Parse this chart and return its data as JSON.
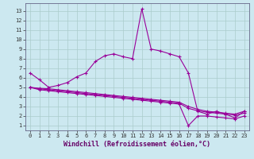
{
  "xlabel": "Windchill (Refroidissement éolien,°C)",
  "line1_x": [
    0,
    1,
    2,
    3,
    4,
    5,
    6,
    7,
    8,
    9,
    10,
    11,
    12,
    13,
    14,
    15,
    16,
    17,
    18,
    19,
    20,
    21,
    22,
    23
  ],
  "line1_y": [
    6.5,
    5.8,
    5.0,
    5.2,
    5.5,
    6.1,
    6.5,
    7.7,
    8.3,
    8.5,
    8.2,
    8.0,
    13.2,
    9.0,
    8.8,
    8.5,
    8.2,
    6.5,
    2.5,
    2.2,
    2.5,
    2.2,
    1.8,
    2.5
  ],
  "line2_x": [
    0,
    1,
    2,
    3,
    4,
    5,
    6,
    7,
    8,
    9,
    10,
    11,
    12,
    13,
    14,
    15,
    16,
    17,
    18,
    19,
    20,
    21,
    22,
    23
  ],
  "line2_y": [
    5.0,
    4.9,
    4.85,
    4.75,
    4.65,
    4.55,
    4.45,
    4.35,
    4.25,
    4.15,
    4.05,
    3.95,
    3.85,
    3.75,
    3.65,
    3.55,
    3.45,
    3.0,
    2.7,
    2.5,
    2.4,
    2.3,
    2.2,
    2.5
  ],
  "line3_x": [
    0,
    1,
    2,
    3,
    4,
    5,
    6,
    7,
    8,
    9,
    10,
    11,
    12,
    13,
    14,
    15,
    16,
    17,
    18,
    19,
    20,
    21,
    22,
    23
  ],
  "line3_y": [
    5.0,
    4.85,
    4.75,
    4.65,
    4.55,
    4.45,
    4.35,
    4.25,
    4.15,
    4.05,
    3.95,
    3.85,
    3.75,
    3.65,
    3.55,
    3.45,
    3.35,
    2.8,
    2.55,
    2.4,
    2.3,
    2.2,
    2.1,
    2.3
  ],
  "line4_x": [
    0,
    1,
    2,
    3,
    4,
    5,
    6,
    7,
    8,
    9,
    10,
    11,
    12,
    13,
    14,
    15,
    16,
    17,
    18,
    19,
    20,
    21,
    22,
    23
  ],
  "line4_y": [
    5.0,
    4.75,
    4.65,
    4.55,
    4.45,
    4.35,
    4.25,
    4.15,
    4.05,
    3.95,
    3.85,
    3.75,
    3.65,
    3.55,
    3.45,
    3.35,
    3.25,
    1.0,
    2.0,
    2.0,
    1.9,
    1.8,
    1.7,
    2.0
  ],
  "line_color": "#990099",
  "bg_color": "#cce8f0",
  "grid_color": "#aacccc",
  "ylim": [
    0.5,
    13.8
  ],
  "xlim": [
    -0.5,
    23.5
  ],
  "yticks": [
    1,
    2,
    3,
    4,
    5,
    6,
    7,
    8,
    9,
    10,
    11,
    12,
    13
  ],
  "xticks": [
    0,
    1,
    2,
    3,
    4,
    5,
    6,
    7,
    8,
    9,
    10,
    11,
    12,
    13,
    14,
    15,
    16,
    17,
    18,
    19,
    20,
    21,
    22,
    23
  ],
  "marker": "+",
  "markersize": 3,
  "linewidth": 0.8,
  "tick_fontsize": 5,
  "xlabel_fontsize": 6
}
